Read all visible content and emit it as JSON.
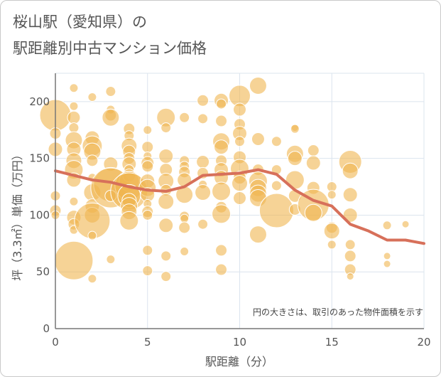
{
  "title": {
    "line1": "桜山駅（愛知県）の",
    "line2": "駅距離別中古マンション価格"
  },
  "chart_data": {
    "type": "scatter",
    "xlabel": "駅距離（分）",
    "ylabel": "坪（3.3㎡）単価（万円）",
    "xlim": [
      0,
      20
    ],
    "ylim": [
      0,
      225
    ],
    "xticks": [
      0,
      5,
      10,
      15,
      20
    ],
    "yticks": [
      0,
      50,
      100,
      150,
      200
    ],
    "grid": true,
    "note": "円の大きさは、取引のあった物件面積を示す",
    "colors": {
      "bubble": "#f0b550",
      "line": "#d7705a",
      "grid": "#dbe4ee",
      "axis": "#777777"
    },
    "trend_line": {
      "x": [
        0,
        1,
        2,
        3,
        4,
        5,
        6,
        7,
        8,
        9,
        10,
        11,
        12,
        13,
        14,
        15,
        16,
        17,
        18,
        19,
        20
      ],
      "y": [
        139,
        135,
        131,
        129,
        125,
        122,
        121,
        125,
        135,
        136,
        137,
        140,
        136,
        122,
        113,
        108,
        92,
        86,
        78,
        78,
        75
      ]
    },
    "bubbles": [
      {
        "x": 0,
        "y": 188,
        "s": 22
      },
      {
        "x": 0,
        "y": 172,
        "s": 8
      },
      {
        "x": 0,
        "y": 158,
        "s": 10
      },
      {
        "x": 0,
        "y": 117,
        "s": 7
      },
      {
        "x": 0,
        "y": 104,
        "s": 8
      },
      {
        "x": 0,
        "y": 100,
        "s": 6
      },
      {
        "x": 1,
        "y": 212,
        "s": 6
      },
      {
        "x": 1,
        "y": 196,
        "s": 6
      },
      {
        "x": 1,
        "y": 186,
        "s": 9
      },
      {
        "x": 1,
        "y": 177,
        "s": 7
      },
      {
        "x": 1,
        "y": 166,
        "s": 12
      },
      {
        "x": 1,
        "y": 158,
        "s": 10
      },
      {
        "x": 1,
        "y": 148,
        "s": 11
      },
      {
        "x": 1,
        "y": 140,
        "s": 13
      },
      {
        "x": 1,
        "y": 131,
        "s": 10
      },
      {
        "x": 1,
        "y": 112,
        "s": 6
      },
      {
        "x": 1,
        "y": 98,
        "s": 10
      },
      {
        "x": 1,
        "y": 92,
        "s": 8
      },
      {
        "x": 1,
        "y": 87,
        "s": 6
      },
      {
        "x": 1,
        "y": 60,
        "s": 27
      },
      {
        "x": 2,
        "y": 204,
        "s": 6
      },
      {
        "x": 2,
        "y": 168,
        "s": 10
      },
      {
        "x": 2,
        "y": 161,
        "s": 14
      },
      {
        "x": 2,
        "y": 156,
        "s": 12
      },
      {
        "x": 2,
        "y": 148,
        "s": 8
      },
      {
        "x": 2,
        "y": 133,
        "s": 6
      },
      {
        "x": 2,
        "y": 120,
        "s": 12
      },
      {
        "x": 2,
        "y": 108,
        "s": 10
      },
      {
        "x": 2,
        "y": 100,
        "s": 11
      },
      {
        "x": 2,
        "y": 95,
        "s": 25
      },
      {
        "x": 2,
        "y": 82,
        "s": 6
      },
      {
        "x": 2,
        "y": 44,
        "s": 6
      },
      {
        "x": 3,
        "y": 209,
        "s": 7
      },
      {
        "x": 3,
        "y": 193,
        "s": 6
      },
      {
        "x": 3,
        "y": 188,
        "s": 8
      },
      {
        "x": 3,
        "y": 186,
        "s": 12
      },
      {
        "x": 3,
        "y": 145,
        "s": 10
      },
      {
        "x": 3,
        "y": 127,
        "s": 24
      },
      {
        "x": 3,
        "y": 124,
        "s": 28
      },
      {
        "x": 3,
        "y": 117,
        "s": 8
      },
      {
        "x": 3,
        "y": 61,
        "s": 6
      },
      {
        "x": 4,
        "y": 176,
        "s": 8
      },
      {
        "x": 4,
        "y": 170,
        "s": 7
      },
      {
        "x": 4,
        "y": 161,
        "s": 11
      },
      {
        "x": 4,
        "y": 156,
        "s": 9
      },
      {
        "x": 4,
        "y": 150,
        "s": 8
      },
      {
        "x": 4,
        "y": 145,
        "s": 10
      },
      {
        "x": 4,
        "y": 140,
        "s": 7
      },
      {
        "x": 4,
        "y": 135,
        "s": 9
      },
      {
        "x": 4,
        "y": 130,
        "s": 14
      },
      {
        "x": 4,
        "y": 126,
        "s": 20
      },
      {
        "x": 4,
        "y": 121,
        "s": 26
      },
      {
        "x": 4,
        "y": 117,
        "s": 16
      },
      {
        "x": 4,
        "y": 113,
        "s": 10
      },
      {
        "x": 4,
        "y": 108,
        "s": 12
      },
      {
        "x": 4,
        "y": 103,
        "s": 11
      },
      {
        "x": 4,
        "y": 95,
        "s": 13
      },
      {
        "x": 5,
        "y": 175,
        "s": 6
      },
      {
        "x": 5,
        "y": 160,
        "s": 8
      },
      {
        "x": 5,
        "y": 152,
        "s": 6
      },
      {
        "x": 5,
        "y": 146,
        "s": 9
      },
      {
        "x": 5,
        "y": 143,
        "s": 8
      },
      {
        "x": 5,
        "y": 130,
        "s": 10
      },
      {
        "x": 5,
        "y": 124,
        "s": 12
      },
      {
        "x": 5,
        "y": 118,
        "s": 10
      },
      {
        "x": 5,
        "y": 110,
        "s": 6
      },
      {
        "x": 5,
        "y": 103,
        "s": 8
      },
      {
        "x": 5,
        "y": 100,
        "s": 7
      },
      {
        "x": 5,
        "y": 69,
        "s": 7
      },
      {
        "x": 5,
        "y": 51,
        "s": 7
      },
      {
        "x": 6,
        "y": 186,
        "s": 13
      },
      {
        "x": 6,
        "y": 177,
        "s": 7
      },
      {
        "x": 6,
        "y": 152,
        "s": 10
      },
      {
        "x": 6,
        "y": 140,
        "s": 9
      },
      {
        "x": 6,
        "y": 130,
        "s": 11
      },
      {
        "x": 6,
        "y": 122,
        "s": 8
      },
      {
        "x": 6,
        "y": 112,
        "s": 11
      },
      {
        "x": 6,
        "y": 91,
        "s": 10
      },
      {
        "x": 6,
        "y": 64,
        "s": 7
      },
      {
        "x": 6,
        "y": 46,
        "s": 7
      },
      {
        "x": 7,
        "y": 186,
        "s": 7
      },
      {
        "x": 7,
        "y": 148,
        "s": 7
      },
      {
        "x": 7,
        "y": 143,
        "s": 7
      },
      {
        "x": 7,
        "y": 138,
        "s": 8
      },
      {
        "x": 7,
        "y": 131,
        "s": 10
      },
      {
        "x": 7,
        "y": 118,
        "s": 12
      },
      {
        "x": 7,
        "y": 99,
        "s": 7
      },
      {
        "x": 7,
        "y": 97,
        "s": 6
      },
      {
        "x": 7,
        "y": 89,
        "s": 8
      },
      {
        "x": 7,
        "y": 68,
        "s": 6
      },
      {
        "x": 8,
        "y": 201,
        "s": 8
      },
      {
        "x": 8,
        "y": 185,
        "s": 7
      },
      {
        "x": 8,
        "y": 147,
        "s": 9
      },
      {
        "x": 8,
        "y": 137,
        "s": 8
      },
      {
        "x": 8,
        "y": 127,
        "s": 6
      },
      {
        "x": 8,
        "y": 120,
        "s": 11
      },
      {
        "x": 8,
        "y": 92,
        "s": 7
      },
      {
        "x": 9,
        "y": 201,
        "s": 10
      },
      {
        "x": 9,
        "y": 198,
        "s": 7
      },
      {
        "x": 9,
        "y": 183,
        "s": 8
      },
      {
        "x": 9,
        "y": 165,
        "s": 12
      },
      {
        "x": 9,
        "y": 160,
        "s": 10
      },
      {
        "x": 9,
        "y": 148,
        "s": 8
      },
      {
        "x": 9,
        "y": 140,
        "s": 10
      },
      {
        "x": 9,
        "y": 133,
        "s": 10
      },
      {
        "x": 9,
        "y": 121,
        "s": 13
      },
      {
        "x": 9,
        "y": 107,
        "s": 8
      },
      {
        "x": 9,
        "y": 101,
        "s": 13
      },
      {
        "x": 9,
        "y": 69,
        "s": 8
      },
      {
        "x": 9,
        "y": 52,
        "s": 8
      },
      {
        "x": 10,
        "y": 205,
        "s": 15
      },
      {
        "x": 10,
        "y": 193,
        "s": 9
      },
      {
        "x": 10,
        "y": 180,
        "s": 8
      },
      {
        "x": 10,
        "y": 172,
        "s": 10
      },
      {
        "x": 10,
        "y": 165,
        "s": 7
      },
      {
        "x": 10,
        "y": 151,
        "s": 9
      },
      {
        "x": 10,
        "y": 141,
        "s": 13
      },
      {
        "x": 10,
        "y": 133,
        "s": 9
      },
      {
        "x": 10,
        "y": 128,
        "s": 11
      },
      {
        "x": 10,
        "y": 115,
        "s": 9
      },
      {
        "x": 11,
        "y": 214,
        "s": 12
      },
      {
        "x": 11,
        "y": 167,
        "s": 9
      },
      {
        "x": 11,
        "y": 140,
        "s": 8
      },
      {
        "x": 11,
        "y": 130,
        "s": 13
      },
      {
        "x": 11,
        "y": 124,
        "s": 12
      },
      {
        "x": 11,
        "y": 119,
        "s": 12
      },
      {
        "x": 11,
        "y": 115,
        "s": 12
      },
      {
        "x": 11,
        "y": 83,
        "s": 12
      },
      {
        "x": 12,
        "y": 165,
        "s": 7
      },
      {
        "x": 12,
        "y": 140,
        "s": 7
      },
      {
        "x": 12,
        "y": 126,
        "s": 7
      },
      {
        "x": 12,
        "y": 104,
        "s": 24
      },
      {
        "x": 13,
        "y": 177,
        "s": 5
      },
      {
        "x": 13,
        "y": 176,
        "s": 6
      },
      {
        "x": 13,
        "y": 154,
        "s": 12
      },
      {
        "x": 13,
        "y": 150,
        "s": 10
      },
      {
        "x": 13,
        "y": 131,
        "s": 13
      },
      {
        "x": 13,
        "y": 117,
        "s": 9
      },
      {
        "x": 13,
        "y": 105,
        "s": 8
      },
      {
        "x": 14,
        "y": 157,
        "s": 8
      },
      {
        "x": 14,
        "y": 146,
        "s": 10
      },
      {
        "x": 14,
        "y": 124,
        "s": 9
      },
      {
        "x": 14,
        "y": 109,
        "s": 22
      },
      {
        "x": 14,
        "y": 102,
        "s": 12
      },
      {
        "x": 15,
        "y": 125,
        "s": 7
      },
      {
        "x": 15,
        "y": 118,
        "s": 6
      },
      {
        "x": 15,
        "y": 89,
        "s": 8
      },
      {
        "x": 15,
        "y": 86,
        "s": 11
      },
      {
        "x": 15,
        "y": 74,
        "s": 6
      },
      {
        "x": 16,
        "y": 147,
        "s": 16
      },
      {
        "x": 16,
        "y": 139,
        "s": 11
      },
      {
        "x": 16,
        "y": 118,
        "s": 10
      },
      {
        "x": 16,
        "y": 100,
        "s": 10
      },
      {
        "x": 16,
        "y": 74,
        "s": 7
      },
      {
        "x": 16,
        "y": 64,
        "s": 8
      },
      {
        "x": 16,
        "y": 52,
        "s": 8
      },
      {
        "x": 16,
        "y": 46,
        "s": 5
      },
      {
        "x": 18,
        "y": 91,
        "s": 6
      },
      {
        "x": 18,
        "y": 64,
        "s": 5
      },
      {
        "x": 18,
        "y": 57,
        "s": 5
      },
      {
        "x": 19,
        "y": 92,
        "s": 5
      }
    ]
  }
}
